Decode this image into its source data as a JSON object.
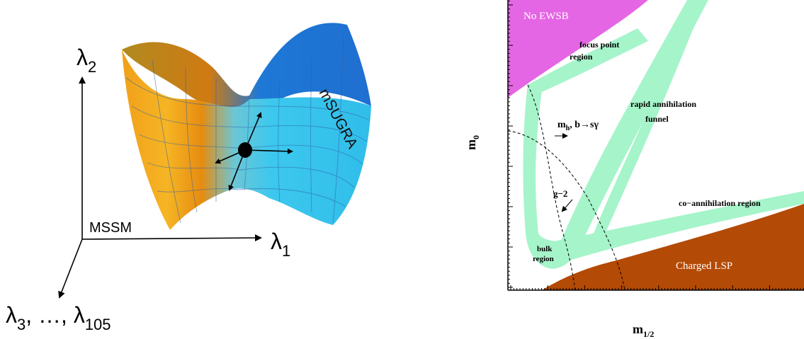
{
  "left_panel": {
    "axis_lambda2": {
      "symbol": "λ",
      "sub": "2"
    },
    "axis_lambda1": {
      "symbol": "λ",
      "sub": "1"
    },
    "axis_lambda3": {
      "sym_a": "λ",
      "sub_a": "3",
      "middle": ", …, ",
      "sym_b": "λ",
      "sub_b": "105"
    },
    "mssm_label": "MSSM",
    "surface_label": "mSUGRA",
    "colors": {
      "surface_blue": "#35c6ec",
      "surface_orange": "#f29a17",
      "mesh_line": "#2f5fa8"
    }
  },
  "right_panel": {
    "axes": {
      "y_label": "m",
      "y_label_sub": "0",
      "x_label": "m",
      "x_label_sub": "1/2"
    },
    "regions": {
      "no_ewsb": "No EWSB",
      "focus_point_line1": "focus point",
      "focus_point_line2": "region",
      "rapid_line1": "rapid annihilation",
      "rapid_line2": "funnel",
      "coannihilation": "co−annihilation region",
      "bulk_line1": "bulk",
      "bulk_line2": "region",
      "charged_lsp": "Charged LSP"
    },
    "constraints": {
      "mh_m": "m",
      "mh_sub": "h",
      "mh_rest": ", b→sγ",
      "g2": "g−2"
    },
    "colors": {
      "no_ewsb": "#e466e4",
      "allowed": "#a6f4ca",
      "charged_lsp": "#b34a05",
      "constraint_line": "#000000"
    }
  }
}
